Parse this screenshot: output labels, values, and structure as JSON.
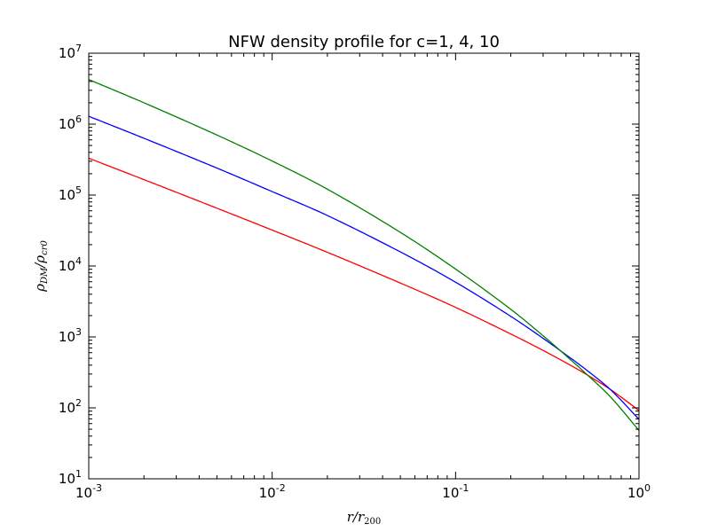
{
  "chart_data": {
    "type": "line",
    "title": "NFW density profile for c=1, 4, 10",
    "xlabel": {
      "base": "r/r",
      "sub": "200"
    },
    "ylabel": {
      "base": "ρ",
      "sub1": "DM",
      "mid": "/ρ",
      "sub2": "cr0"
    },
    "xscale": "log",
    "yscale": "log",
    "xlim": [
      0.001,
      1
    ],
    "ylim": [
      10,
      10000000
    ],
    "xticks": [
      {
        "value": 0.001,
        "base": "10",
        "exp": "-3"
      },
      {
        "value": 0.01,
        "base": "10",
        "exp": "-2"
      },
      {
        "value": 0.1,
        "base": "10",
        "exp": "-1"
      },
      {
        "value": 1,
        "base": "10",
        "exp": "0"
      }
    ],
    "yticks": [
      {
        "value": 10,
        "base": "10",
        "exp": "1"
      },
      {
        "value": 100,
        "base": "10",
        "exp": "2"
      },
      {
        "value": 1000,
        "base": "10",
        "exp": "3"
      },
      {
        "value": 10000,
        "base": "10",
        "exp": "4"
      },
      {
        "value": 100000,
        "base": "10",
        "exp": "5"
      },
      {
        "value": 1000000,
        "base": "10",
        "exp": "6"
      },
      {
        "value": 10000000,
        "base": "10",
        "exp": "7"
      }
    ],
    "grid": false,
    "legend": "none",
    "x": [
      0.001,
      0.002,
      0.005,
      0.01,
      0.02,
      0.05,
      0.1,
      0.2,
      0.3,
      0.4,
      0.5,
      0.7,
      1.0
    ],
    "series": [
      {
        "color": "#ff0000",
        "values": [
          331000,
          165000,
          65300,
          32100,
          15600,
          5750,
          2610,
          1100,
          646,
          432,
          311,
          181,
          92
        ]
      },
      {
        "color": "#0000ff",
        "values": [
          1290000,
          632000,
          240000,
          112000,
          51500,
          15800,
          5910,
          1950,
          956,
          560,
          366,
          180,
          69
        ]
      },
      {
        "color": "#008000",
        "values": [
          4250000,
          2000000,
          702000,
          302000,
          121000,
          29800,
          9050,
          2450,
          1040,
          544,
          324,
          142,
          48
        ]
      }
    ]
  }
}
